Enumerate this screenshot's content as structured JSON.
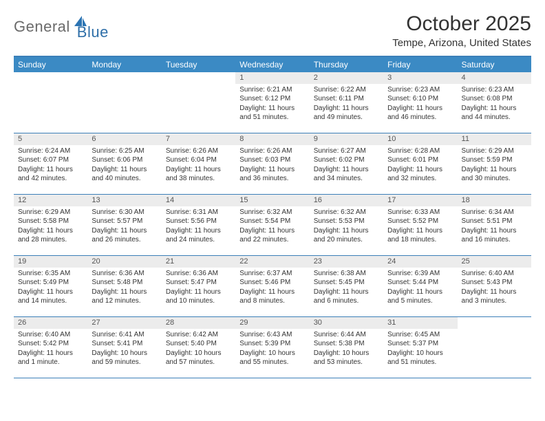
{
  "logo": {
    "text1": "General",
    "text2": "Blue",
    "shape_fill": "#2b74b3"
  },
  "colors": {
    "header_bar": "#3b8ac4",
    "header_border": "#3b7fb8",
    "daynum_bg": "#ececec",
    "text": "#333333",
    "logo_gray": "#6a6a6a",
    "logo_blue": "#2f6fa8"
  },
  "title": "October 2025",
  "location": "Tempe, Arizona, United States",
  "weekdays": [
    "Sunday",
    "Monday",
    "Tuesday",
    "Wednesday",
    "Thursday",
    "Friday",
    "Saturday"
  ],
  "weeks": [
    [
      {
        "n": "",
        "lines": []
      },
      {
        "n": "",
        "lines": []
      },
      {
        "n": "",
        "lines": []
      },
      {
        "n": "1",
        "lines": [
          "Sunrise: 6:21 AM",
          "Sunset: 6:12 PM",
          "Daylight: 11 hours and 51 minutes."
        ]
      },
      {
        "n": "2",
        "lines": [
          "Sunrise: 6:22 AM",
          "Sunset: 6:11 PM",
          "Daylight: 11 hours and 49 minutes."
        ]
      },
      {
        "n": "3",
        "lines": [
          "Sunrise: 6:23 AM",
          "Sunset: 6:10 PM",
          "Daylight: 11 hours and 46 minutes."
        ]
      },
      {
        "n": "4",
        "lines": [
          "Sunrise: 6:23 AM",
          "Sunset: 6:08 PM",
          "Daylight: 11 hours and 44 minutes."
        ]
      }
    ],
    [
      {
        "n": "5",
        "lines": [
          "Sunrise: 6:24 AM",
          "Sunset: 6:07 PM",
          "Daylight: 11 hours and 42 minutes."
        ]
      },
      {
        "n": "6",
        "lines": [
          "Sunrise: 6:25 AM",
          "Sunset: 6:06 PM",
          "Daylight: 11 hours and 40 minutes."
        ]
      },
      {
        "n": "7",
        "lines": [
          "Sunrise: 6:26 AM",
          "Sunset: 6:04 PM",
          "Daylight: 11 hours and 38 minutes."
        ]
      },
      {
        "n": "8",
        "lines": [
          "Sunrise: 6:26 AM",
          "Sunset: 6:03 PM",
          "Daylight: 11 hours and 36 minutes."
        ]
      },
      {
        "n": "9",
        "lines": [
          "Sunrise: 6:27 AM",
          "Sunset: 6:02 PM",
          "Daylight: 11 hours and 34 minutes."
        ]
      },
      {
        "n": "10",
        "lines": [
          "Sunrise: 6:28 AM",
          "Sunset: 6:01 PM",
          "Daylight: 11 hours and 32 minutes."
        ]
      },
      {
        "n": "11",
        "lines": [
          "Sunrise: 6:29 AM",
          "Sunset: 5:59 PM",
          "Daylight: 11 hours and 30 minutes."
        ]
      }
    ],
    [
      {
        "n": "12",
        "lines": [
          "Sunrise: 6:29 AM",
          "Sunset: 5:58 PM",
          "Daylight: 11 hours and 28 minutes."
        ]
      },
      {
        "n": "13",
        "lines": [
          "Sunrise: 6:30 AM",
          "Sunset: 5:57 PM",
          "Daylight: 11 hours and 26 minutes."
        ]
      },
      {
        "n": "14",
        "lines": [
          "Sunrise: 6:31 AM",
          "Sunset: 5:56 PM",
          "Daylight: 11 hours and 24 minutes."
        ]
      },
      {
        "n": "15",
        "lines": [
          "Sunrise: 6:32 AM",
          "Sunset: 5:54 PM",
          "Daylight: 11 hours and 22 minutes."
        ]
      },
      {
        "n": "16",
        "lines": [
          "Sunrise: 6:32 AM",
          "Sunset: 5:53 PM",
          "Daylight: 11 hours and 20 minutes."
        ]
      },
      {
        "n": "17",
        "lines": [
          "Sunrise: 6:33 AM",
          "Sunset: 5:52 PM",
          "Daylight: 11 hours and 18 minutes."
        ]
      },
      {
        "n": "18",
        "lines": [
          "Sunrise: 6:34 AM",
          "Sunset: 5:51 PM",
          "Daylight: 11 hours and 16 minutes."
        ]
      }
    ],
    [
      {
        "n": "19",
        "lines": [
          "Sunrise: 6:35 AM",
          "Sunset: 5:49 PM",
          "Daylight: 11 hours and 14 minutes."
        ]
      },
      {
        "n": "20",
        "lines": [
          "Sunrise: 6:36 AM",
          "Sunset: 5:48 PM",
          "Daylight: 11 hours and 12 minutes."
        ]
      },
      {
        "n": "21",
        "lines": [
          "Sunrise: 6:36 AM",
          "Sunset: 5:47 PM",
          "Daylight: 11 hours and 10 minutes."
        ]
      },
      {
        "n": "22",
        "lines": [
          "Sunrise: 6:37 AM",
          "Sunset: 5:46 PM",
          "Daylight: 11 hours and 8 minutes."
        ]
      },
      {
        "n": "23",
        "lines": [
          "Sunrise: 6:38 AM",
          "Sunset: 5:45 PM",
          "Daylight: 11 hours and 6 minutes."
        ]
      },
      {
        "n": "24",
        "lines": [
          "Sunrise: 6:39 AM",
          "Sunset: 5:44 PM",
          "Daylight: 11 hours and 5 minutes."
        ]
      },
      {
        "n": "25",
        "lines": [
          "Sunrise: 6:40 AM",
          "Sunset: 5:43 PM",
          "Daylight: 11 hours and 3 minutes."
        ]
      }
    ],
    [
      {
        "n": "26",
        "lines": [
          "Sunrise: 6:40 AM",
          "Sunset: 5:42 PM",
          "Daylight: 11 hours and 1 minute."
        ]
      },
      {
        "n": "27",
        "lines": [
          "Sunrise: 6:41 AM",
          "Sunset: 5:41 PM",
          "Daylight: 10 hours and 59 minutes."
        ]
      },
      {
        "n": "28",
        "lines": [
          "Sunrise: 6:42 AM",
          "Sunset: 5:40 PM",
          "Daylight: 10 hours and 57 minutes."
        ]
      },
      {
        "n": "29",
        "lines": [
          "Sunrise: 6:43 AM",
          "Sunset: 5:39 PM",
          "Daylight: 10 hours and 55 minutes."
        ]
      },
      {
        "n": "30",
        "lines": [
          "Sunrise: 6:44 AM",
          "Sunset: 5:38 PM",
          "Daylight: 10 hours and 53 minutes."
        ]
      },
      {
        "n": "31",
        "lines": [
          "Sunrise: 6:45 AM",
          "Sunset: 5:37 PM",
          "Daylight: 10 hours and 51 minutes."
        ]
      },
      {
        "n": "",
        "lines": []
      }
    ]
  ]
}
